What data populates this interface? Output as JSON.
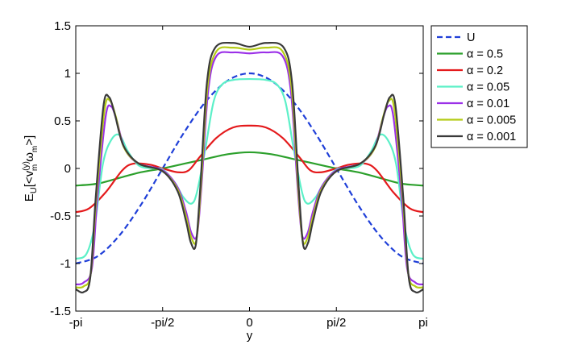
{
  "chart_data": {
    "type": "line",
    "title": "",
    "xlabel": "y",
    "ylabel_main": "E",
    "ylabel_sub": "U",
    "ylabel_mid": "[<v",
    "ylabel_sup": "(y)",
    "ylabel_sub2": "m",
    "ylabel_omega": "ω",
    "ylabel_sub3": "m",
    "ylabel_end": ">]",
    "xlim": [
      -3.14159,
      3.14159
    ],
    "ylim": [
      -1.5,
      1.5
    ],
    "xticks": [
      {
        "value": -3.14159,
        "label": "-pi"
      },
      {
        "value": -1.5708,
        "label": "-pi/2"
      },
      {
        "value": 0,
        "label": "0"
      },
      {
        "value": 1.5708,
        "label": "pi/2"
      },
      {
        "value": 3.14159,
        "label": "pi"
      }
    ],
    "yticks": [
      {
        "value": -1.5,
        "label": "-1.5"
      },
      {
        "value": -1,
        "label": "-1"
      },
      {
        "value": -0.5,
        "label": "-0.5"
      },
      {
        "value": 0,
        "label": "0"
      },
      {
        "value": 0.5,
        "label": "0.5"
      },
      {
        "value": 1,
        "label": "1"
      },
      {
        "value": 1.5,
        "label": "1.5"
      }
    ],
    "grid": false,
    "legend_position": "outside-top-right",
    "series": [
      {
        "name": "U",
        "color": "#1f3fd8",
        "dashed": true,
        "points": [
          [
            -3.1416,
            -1.0
          ],
          [
            -2.7489,
            -0.924
          ],
          [
            -2.3562,
            -0.707
          ],
          [
            -1.9635,
            -0.383
          ],
          [
            -1.5708,
            0.0
          ],
          [
            -1.1781,
            0.383
          ],
          [
            -0.7854,
            0.707
          ],
          [
            -0.3927,
            0.924
          ],
          [
            0,
            1.0
          ],
          [
            0.3927,
            0.924
          ],
          [
            0.7854,
            0.707
          ],
          [
            1.1781,
            0.383
          ],
          [
            1.5708,
            0.0
          ],
          [
            1.9635,
            -0.383
          ],
          [
            2.3562,
            -0.707
          ],
          [
            2.7489,
            -0.924
          ],
          [
            3.1416,
            -1.0
          ]
        ]
      },
      {
        "name": "α = 0.5",
        "color": "#2ca02c",
        "dashed": false,
        "points": [
          [
            -3.1416,
            -0.18
          ],
          [
            -2.7489,
            -0.16
          ],
          [
            -2.3562,
            -0.1
          ],
          [
            -1.9635,
            -0.04
          ],
          [
            -1.5708,
            0.0
          ],
          [
            -1.1781,
            0.05
          ],
          [
            -0.7854,
            0.1
          ],
          [
            -0.3927,
            0.15
          ],
          [
            0,
            0.17
          ],
          [
            0.3927,
            0.15
          ],
          [
            0.7854,
            0.1
          ],
          [
            1.1781,
            0.05
          ],
          [
            1.5708,
            0.0
          ],
          [
            1.9635,
            -0.04
          ],
          [
            2.3562,
            -0.1
          ],
          [
            2.7489,
            -0.16
          ],
          [
            3.1416,
            -0.18
          ]
        ]
      },
      {
        "name": "α = 0.2",
        "color": "#e41a1c",
        "dashed": false,
        "points": [
          [
            -3.1416,
            -0.46
          ],
          [
            -2.9,
            -0.42
          ],
          [
            -2.6,
            -0.25
          ],
          [
            -2.3,
            -0.02
          ],
          [
            -2.1,
            0.05
          ],
          [
            -1.8,
            0.04
          ],
          [
            -1.5708,
            0.0
          ],
          [
            -1.3,
            -0.04
          ],
          [
            -1.1,
            -0.02
          ],
          [
            -0.9,
            0.12
          ],
          [
            -0.6,
            0.32
          ],
          [
            -0.3,
            0.43
          ],
          [
            0,
            0.45
          ],
          [
            0.3,
            0.43
          ],
          [
            0.6,
            0.32
          ],
          [
            0.9,
            0.12
          ],
          [
            1.1,
            -0.02
          ],
          [
            1.3,
            -0.04
          ],
          [
            1.5708,
            0.0
          ],
          [
            1.8,
            0.04
          ],
          [
            2.1,
            0.05
          ],
          [
            2.3,
            -0.02
          ],
          [
            2.6,
            -0.25
          ],
          [
            2.9,
            -0.42
          ],
          [
            3.1416,
            -0.46
          ]
        ]
      },
      {
        "name": "α = 0.05",
        "color": "#5cf0c8",
        "dashed": false,
        "points": [
          [
            -3.1416,
            -0.95
          ],
          [
            -2.95,
            -0.9
          ],
          [
            -2.8,
            -0.6
          ],
          [
            -2.65,
            0.05
          ],
          [
            -2.5,
            0.3
          ],
          [
            -2.35,
            0.35
          ],
          [
            -2.2,
            0.18
          ],
          [
            -2.0,
            0.03
          ],
          [
            -1.75,
            0.0
          ],
          [
            -1.5708,
            -0.01
          ],
          [
            -1.35,
            -0.15
          ],
          [
            -1.2,
            -0.3
          ],
          [
            -1.05,
            -0.37
          ],
          [
            -0.95,
            -0.25
          ],
          [
            -0.8,
            0.2
          ],
          [
            -0.65,
            0.7
          ],
          [
            -0.5,
            0.88
          ],
          [
            -0.3,
            0.93
          ],
          [
            0,
            0.94
          ],
          [
            0.3,
            0.93
          ],
          [
            0.5,
            0.88
          ],
          [
            0.65,
            0.7
          ],
          [
            0.8,
            0.2
          ],
          [
            0.95,
            -0.25
          ],
          [
            1.05,
            -0.37
          ],
          [
            1.2,
            -0.3
          ],
          [
            1.35,
            -0.15
          ],
          [
            1.5708,
            -0.01
          ],
          [
            1.75,
            0.0
          ],
          [
            2.0,
            0.03
          ],
          [
            2.2,
            0.18
          ],
          [
            2.35,
            0.35
          ],
          [
            2.5,
            0.3
          ],
          [
            2.65,
            0.05
          ],
          [
            2.8,
            -0.6
          ],
          [
            2.95,
            -0.9
          ],
          [
            3.1416,
            -0.95
          ]
        ]
      },
      {
        "name": "α = 0.01",
        "color": "#9b30e8",
        "dashed": false,
        "points": [
          [
            -3.1416,
            -1.22
          ],
          [
            -3.0,
            -1.2
          ],
          [
            -2.85,
            -1.05
          ],
          [
            -2.75,
            -0.3
          ],
          [
            -2.6,
            0.55
          ],
          [
            -2.5,
            0.65
          ],
          [
            -2.4,
            0.5
          ],
          [
            -2.25,
            0.2
          ],
          [
            -2.0,
            0.05
          ],
          [
            -1.5708,
            -0.02
          ],
          [
            -1.3,
            -0.2
          ],
          [
            -1.15,
            -0.45
          ],
          [
            -1.05,
            -0.68
          ],
          [
            -0.95,
            -0.7
          ],
          [
            -0.87,
            -0.2
          ],
          [
            -0.75,
            0.8
          ],
          [
            -0.6,
            1.18
          ],
          [
            -0.3,
            1.22
          ],
          [
            0,
            1.21
          ],
          [
            0.3,
            1.22
          ],
          [
            0.6,
            1.18
          ],
          [
            0.75,
            0.8
          ],
          [
            0.87,
            -0.2
          ],
          [
            0.95,
            -0.7
          ],
          [
            1.05,
            -0.68
          ],
          [
            1.15,
            -0.45
          ],
          [
            1.3,
            -0.2
          ],
          [
            1.5708,
            -0.02
          ],
          [
            2.0,
            0.05
          ],
          [
            2.25,
            0.2
          ],
          [
            2.4,
            0.5
          ],
          [
            2.5,
            0.65
          ],
          [
            2.6,
            0.55
          ],
          [
            2.75,
            -0.3
          ],
          [
            2.85,
            -1.05
          ],
          [
            3.0,
            -1.2
          ],
          [
            3.1416,
            -1.22
          ]
        ]
      },
      {
        "name": "α = 0.005",
        "color": "#b5cc18",
        "dashed": false,
        "points": [
          [
            -3.1416,
            -1.25
          ],
          [
            -3.0,
            -1.24
          ],
          [
            -2.87,
            -1.1
          ],
          [
            -2.77,
            -0.3
          ],
          [
            -2.62,
            0.62
          ],
          [
            -2.52,
            0.71
          ],
          [
            -2.42,
            0.55
          ],
          [
            -2.27,
            0.22
          ],
          [
            -2.0,
            0.05
          ],
          [
            -1.5708,
            -0.03
          ],
          [
            -1.3,
            -0.22
          ],
          [
            -1.15,
            -0.5
          ],
          [
            -1.05,
            -0.73
          ],
          [
            -0.96,
            -0.75
          ],
          [
            -0.88,
            -0.2
          ],
          [
            -0.76,
            0.85
          ],
          [
            -0.6,
            1.23
          ],
          [
            -0.3,
            1.27
          ],
          [
            0,
            1.25
          ],
          [
            0.3,
            1.27
          ],
          [
            0.6,
            1.23
          ],
          [
            0.76,
            0.85
          ],
          [
            0.88,
            -0.2
          ],
          [
            0.96,
            -0.75
          ],
          [
            1.05,
            -0.73
          ],
          [
            1.15,
            -0.5
          ],
          [
            1.3,
            -0.22
          ],
          [
            1.5708,
            -0.03
          ],
          [
            2.0,
            0.05
          ],
          [
            2.27,
            0.22
          ],
          [
            2.42,
            0.55
          ],
          [
            2.52,
            0.71
          ],
          [
            2.62,
            0.62
          ],
          [
            2.77,
            -0.3
          ],
          [
            2.87,
            -1.1
          ],
          [
            3.0,
            -1.24
          ],
          [
            3.1416,
            -1.25
          ]
        ]
      },
      {
        "name": "α = 0.001",
        "color": "#3a3a3a",
        "dashed": false,
        "points": [
          [
            -3.1416,
            -1.27
          ],
          [
            -3.0,
            -1.3
          ],
          [
            -2.88,
            -1.15
          ],
          [
            -2.78,
            -0.3
          ],
          [
            -2.64,
            0.66
          ],
          [
            -2.54,
            0.75
          ],
          [
            -2.44,
            0.58
          ],
          [
            -2.28,
            0.24
          ],
          [
            -2.0,
            0.05
          ],
          [
            -1.5708,
            -0.03
          ],
          [
            -1.3,
            -0.24
          ],
          [
            -1.15,
            -0.55
          ],
          [
            -1.06,
            -0.78
          ],
          [
            -0.97,
            -0.8
          ],
          [
            -0.89,
            -0.2
          ],
          [
            -0.77,
            0.9
          ],
          [
            -0.62,
            1.27
          ],
          [
            -0.3,
            1.32
          ],
          [
            0,
            1.28
          ],
          [
            0.3,
            1.32
          ],
          [
            0.62,
            1.27
          ],
          [
            0.77,
            0.9
          ],
          [
            0.89,
            -0.2
          ],
          [
            0.97,
            -0.8
          ],
          [
            1.06,
            -0.78
          ],
          [
            1.15,
            -0.55
          ],
          [
            1.3,
            -0.24
          ],
          [
            1.5708,
            -0.03
          ],
          [
            2.0,
            0.05
          ],
          [
            2.28,
            0.24
          ],
          [
            2.44,
            0.58
          ],
          [
            2.54,
            0.75
          ],
          [
            2.64,
            0.66
          ],
          [
            2.78,
            -0.3
          ],
          [
            2.88,
            -1.15
          ],
          [
            3.0,
            -1.3
          ],
          [
            3.1416,
            -1.27
          ]
        ]
      }
    ]
  }
}
